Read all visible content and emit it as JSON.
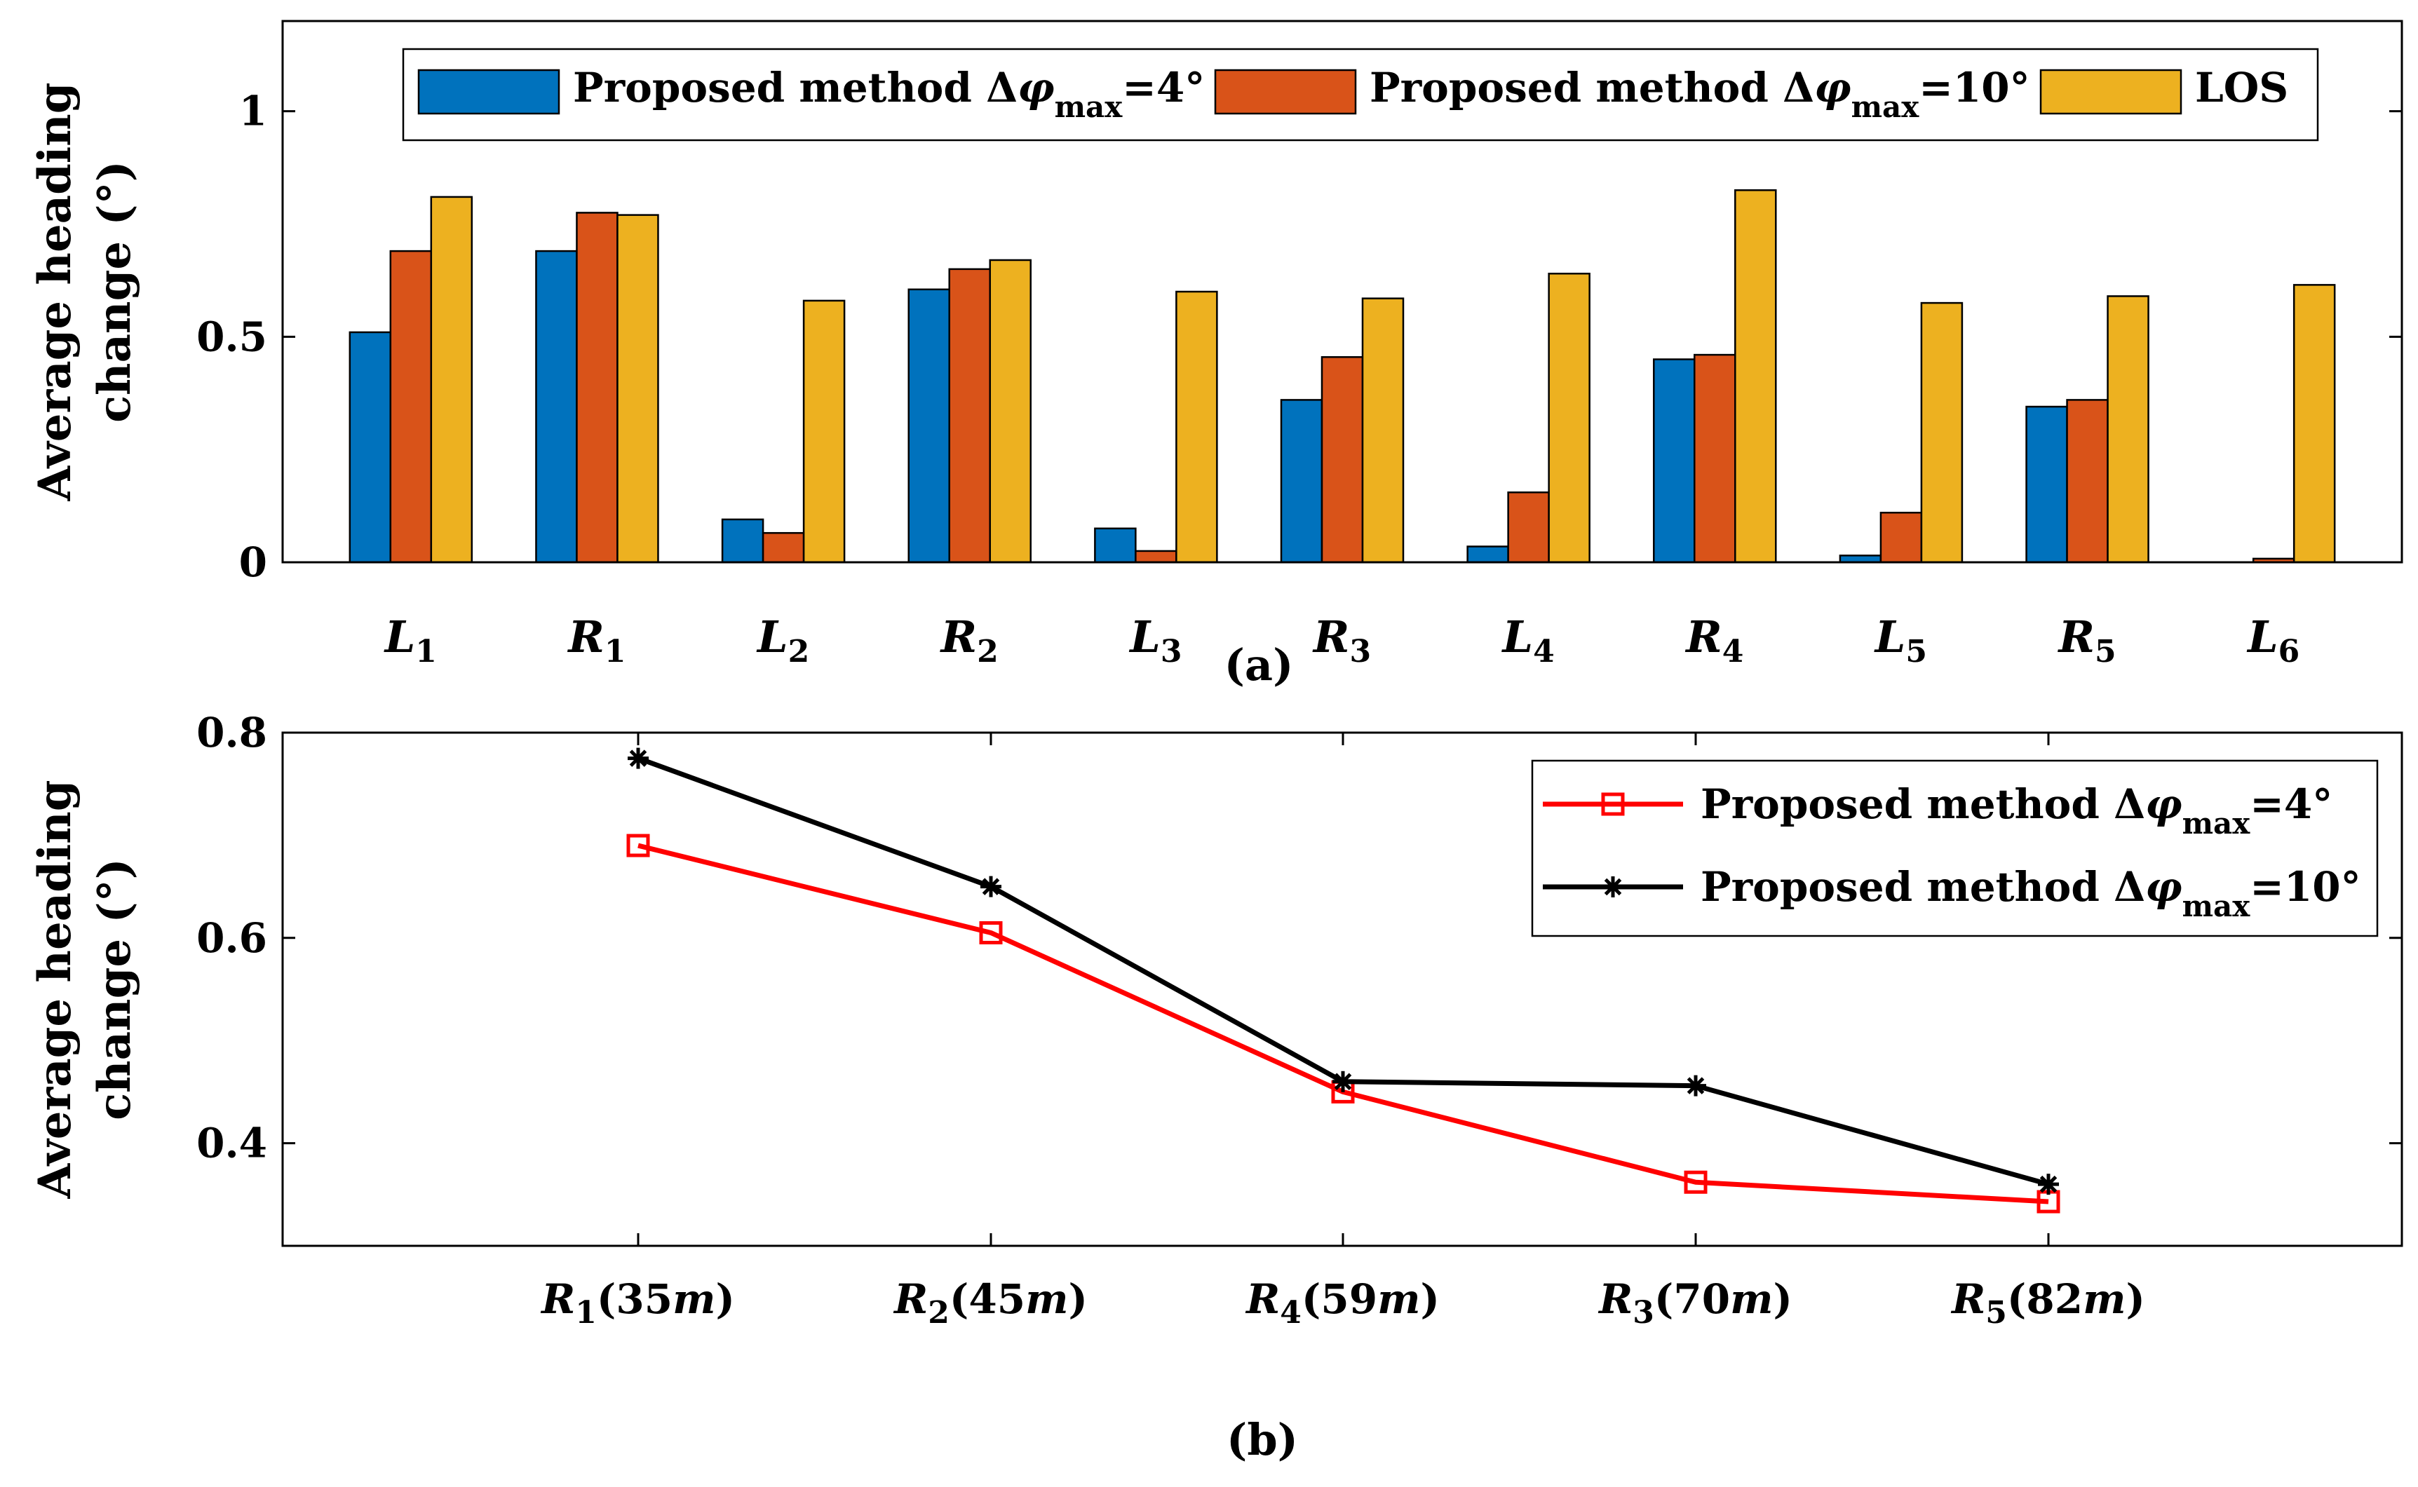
{
  "chart_data": [
    {
      "type": "bar",
      "panel_label": "(a)",
      "ylabel_line1": "Average heading",
      "ylabel_line2": "change (°)",
      "ylim": [
        0,
        1.2
      ],
      "yticks": [
        "0",
        "0.5",
        "1"
      ],
      "legend_position": "top",
      "categories": [
        {
          "letter": "L",
          "sub": "1"
        },
        {
          "letter": "R",
          "sub": "1"
        },
        {
          "letter": "L",
          "sub": "2"
        },
        {
          "letter": "R",
          "sub": "2"
        },
        {
          "letter": "L",
          "sub": "3"
        },
        {
          "letter": "R",
          "sub": "3"
        },
        {
          "letter": "L",
          "sub": "4"
        },
        {
          "letter": "R",
          "sub": "4"
        },
        {
          "letter": "L",
          "sub": "5"
        },
        {
          "letter": "R",
          "sub": "5"
        },
        {
          "letter": "L",
          "sub": "6"
        }
      ],
      "series": [
        {
          "name": "Proposed method Δφmax=4°",
          "label_main": "Proposed method Δ",
          "label_phi": "φ",
          "label_sub": "max",
          "label_tail": "=4°",
          "color": "#0072BD",
          "values": [
            0.51,
            0.69,
            0.095,
            0.605,
            0.075,
            0.36,
            0.035,
            0.45,
            0.015,
            0.345,
            0.0
          ]
        },
        {
          "name": "Proposed method Δφmax=10°",
          "label_main": "Proposed method Δ",
          "label_phi": "φ",
          "label_sub": "max",
          "label_tail": "=10°",
          "color": "#D95319",
          "values": [
            0.69,
            0.775,
            0.065,
            0.65,
            0.025,
            0.455,
            0.155,
            0.46,
            0.11,
            0.36,
            0.008
          ]
        },
        {
          "name": "LOS",
          "label_main": "LOS",
          "label_phi": "",
          "label_sub": "",
          "label_tail": "",
          "color": "#EDB120",
          "values": [
            0.81,
            0.77,
            0.58,
            0.67,
            0.6,
            0.585,
            0.64,
            0.825,
            0.575,
            0.59,
            0.615
          ]
        }
      ]
    },
    {
      "type": "line",
      "panel_label": "(b)",
      "ylabel_line1": "Average heading",
      "ylabel_line2": "change (°)",
      "ylim": [
        0.3,
        0.8
      ],
      "yticks": [
        "0.4",
        "0.6",
        "0.8"
      ],
      "legend_position": "top-right",
      "categories": [
        {
          "letter": "R",
          "sub": "1",
          "rest": "(35",
          "unit": "m",
          "close": ")"
        },
        {
          "letter": "R",
          "sub": "2",
          "rest": "(45",
          "unit": "m",
          "close": ")"
        },
        {
          "letter": "R",
          "sub": "4",
          "rest": "(59",
          "unit": "m",
          "close": ")"
        },
        {
          "letter": "R",
          "sub": "3",
          "rest": "(70",
          "unit": "m",
          "close": ")"
        },
        {
          "letter": "R",
          "sub": "5",
          "rest": "(82",
          "unit": "m",
          "close": ")"
        }
      ],
      "series": [
        {
          "name": "Proposed method Δφmax=4°",
          "label_main": "Proposed method Δ",
          "label_phi": "φ",
          "label_sub": "max",
          "label_tail": "=4°",
          "color": "#FF0000",
          "marker": "square",
          "values": [
            0.69,
            0.605,
            0.45,
            0.362,
            0.343
          ]
        },
        {
          "name": "Proposed method Δφmax=10°",
          "label_main": "Proposed method Δ",
          "label_phi": "φ",
          "label_sub": "max",
          "label_tail": "=10°",
          "color": "#000000",
          "marker": "asterisk",
          "values": [
            0.775,
            0.65,
            0.46,
            0.456,
            0.36
          ]
        }
      ]
    }
  ]
}
